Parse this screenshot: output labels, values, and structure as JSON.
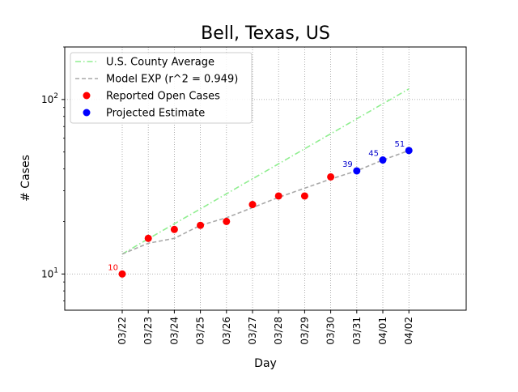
{
  "chart_data": {
    "type": "line",
    "title": "Bell, Texas, US",
    "xlabel": "Day",
    "ylabel": "# Cases",
    "yscale": "log",
    "ylim": [
      6.2,
      200
    ],
    "grid": true,
    "legend_position": "top-left",
    "categories": [
      "03/22",
      "03/23",
      "03/24",
      "03/25",
      "03/26",
      "03/27",
      "03/28",
      "03/29",
      "03/30",
      "03/31",
      "04/01",
      "04/02"
    ],
    "y_ticks": [
      {
        "value": 10,
        "base": "10",
        "exp": "1"
      },
      {
        "value": 100,
        "base": "10",
        "exp": "2"
      }
    ],
    "series": [
      {
        "name": "U.S. County Average",
        "kind": "line",
        "style": "dashdot",
        "color": "#90ee90",
        "x_index": [
          0,
          1,
          2,
          3,
          4,
          5,
          6,
          7,
          8,
          9,
          10,
          11
        ],
        "values": [
          13.0,
          15.9,
          19.4,
          23.6,
          28.8,
          35.1,
          42.8,
          52.2,
          63.6,
          77.5,
          94.5,
          115.0
        ]
      },
      {
        "name": "Model EXP (r^2 = 0.949)",
        "kind": "line",
        "style": "dashed",
        "color": "#a9a9a9",
        "x_index": [
          0,
          1,
          2,
          3,
          4,
          5,
          6,
          7,
          8,
          9,
          10,
          11
        ],
        "values": [
          13.0,
          15.0,
          16.0,
          19.0,
          21.0,
          24.0,
          27.5,
          31.0,
          35.0,
          39.0,
          45.0,
          51.0
        ]
      },
      {
        "name": "Reported Open Cases",
        "kind": "scatter",
        "color": "#ff0000",
        "x_index": [
          0,
          1,
          2,
          3,
          4,
          5,
          6,
          7,
          8
        ],
        "values": [
          10,
          16,
          18,
          19,
          20,
          25,
          28,
          28,
          36
        ]
      },
      {
        "name": "Projected Estimate",
        "kind": "scatter",
        "color": "#0000ff",
        "x_index": [
          9,
          10,
          11
        ],
        "values": [
          39,
          45,
          51
        ]
      }
    ],
    "annotations": [
      {
        "text": "10",
        "x_index": 0,
        "value": 10,
        "color": "#ff0000"
      },
      {
        "text": "39",
        "x_index": 9,
        "value": 39,
        "color": "#0000cc"
      },
      {
        "text": "45",
        "x_index": 10,
        "value": 45,
        "color": "#0000cc"
      },
      {
        "text": "51",
        "x_index": 11,
        "value": 51,
        "color": "#0000cc"
      }
    ]
  }
}
